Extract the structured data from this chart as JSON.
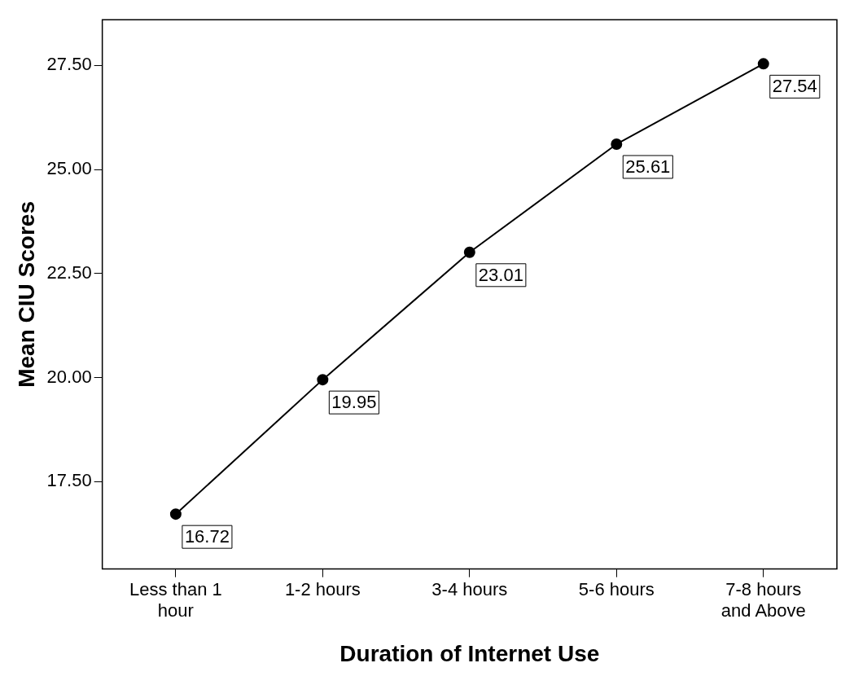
{
  "chart_data": {
    "type": "line",
    "xlabel": "Duration of Internet Use",
    "ylabel": "Mean CIU Scores",
    "categories": [
      "Less than 1 hour",
      "1-2 hours",
      "3-4 hours",
      "5-6 hours",
      "7-8 hours and Above"
    ],
    "series": [
      {
        "color": "#000000",
        "values": [
          16.72,
          19.95,
          23.01,
          25.61,
          27.54
        ]
      }
    ],
    "ylim": [
      15.4,
      28.6
    ],
    "yticks": [
      {
        "value": 17.5,
        "label": "17.50"
      },
      {
        "value": 20,
        "label": "20.00"
      },
      {
        "value": 22.5,
        "label": "22.50"
      },
      {
        "value": 25,
        "label": "25.00"
      },
      {
        "value": 27.5,
        "label": "27.50"
      }
    ],
    "grid": false,
    "legend": false,
    "marker": "circle",
    "line_style": "solid",
    "data_labels": true
  }
}
